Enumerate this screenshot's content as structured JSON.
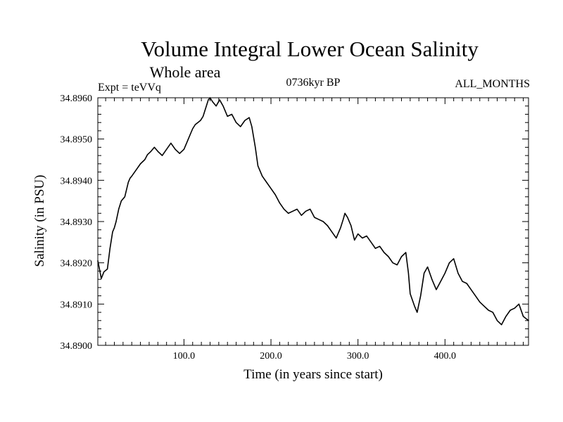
{
  "chart_data": {
    "type": "line",
    "title": "Volume Integral Lower Ocean Salinity",
    "subtitle": "Whole area",
    "header_left": "Expt = teVVq",
    "header_center": "0736kyr BP",
    "header_right": "ALL_MONTHS",
    "xlabel": "Time (in years since start)",
    "ylabel": "Salinity (in PSU)",
    "xlim": [
      1,
      496
    ],
    "ylim": [
      34.89,
      34.896
    ],
    "x_ticks": [
      100,
      200,
      300,
      400
    ],
    "x_tick_labels": [
      "100.0",
      "200.0",
      "300.0",
      "400.0"
    ],
    "y_ticks": [
      34.89,
      34.891,
      34.892,
      34.893,
      34.894,
      34.895,
      34.896
    ],
    "y_tick_labels": [
      "34.8900",
      "34.8910",
      "34.8920",
      "34.8930",
      "34.8940",
      "34.8950",
      "34.8960"
    ],
    "line_color": "#000000",
    "series": [
      {
        "name": "Salinity",
        "x": [
          1,
          5,
          8,
          12,
          15,
          18,
          20,
          22,
          25,
          28,
          32,
          36,
          38,
          40,
          45,
          50,
          55,
          58,
          62,
          66,
          70,
          75,
          80,
          85,
          90,
          95,
          100,
          103,
          106,
          110,
          113,
          116,
          119,
          122,
          125,
          128,
          130,
          133,
          137,
          141,
          145,
          150,
          155,
          160,
          165,
          170,
          175,
          178,
          182,
          185,
          190,
          195,
          200,
          205,
          210,
          215,
          220,
          225,
          230,
          235,
          240,
          245,
          250,
          255,
          260,
          265,
          270,
          275,
          280,
          283,
          285,
          288,
          292,
          296,
          300,
          305,
          310,
          315,
          320,
          325,
          330,
          335,
          340,
          345,
          350,
          355,
          358,
          360,
          365,
          368,
          372,
          376,
          380,
          385,
          390,
          395,
          400,
          405,
          410,
          415,
          420,
          425,
          430,
          435,
          440,
          445,
          450,
          455,
          460,
          465,
          470,
          475,
          480,
          485,
          490,
          493,
          496
        ],
        "values": [
          34.89205,
          34.89162,
          34.89178,
          34.89185,
          34.89235,
          34.89275,
          34.89285,
          34.893,
          34.8933,
          34.8935,
          34.8936,
          34.89395,
          34.89405,
          34.8941,
          34.89425,
          34.8944,
          34.8945,
          34.89462,
          34.8947,
          34.8948,
          34.8947,
          34.8946,
          34.89475,
          34.8949,
          34.89475,
          34.89465,
          34.89475,
          34.8949,
          34.89505,
          34.89525,
          34.89535,
          34.8954,
          34.89545,
          34.89555,
          34.89575,
          34.89595,
          34.896,
          34.8959,
          34.8958,
          34.89595,
          34.8958,
          34.89555,
          34.8956,
          34.8954,
          34.8953,
          34.89545,
          34.89552,
          34.8953,
          34.8948,
          34.89435,
          34.8941,
          34.89395,
          34.8938,
          34.89365,
          34.89345,
          34.8933,
          34.8932,
          34.89325,
          34.8933,
          34.89315,
          34.89325,
          34.8933,
          34.8931,
          34.89305,
          34.893,
          34.8929,
          34.89275,
          34.8926,
          34.89285,
          34.89305,
          34.8932,
          34.8931,
          34.8929,
          34.89255,
          34.8927,
          34.8926,
          34.89265,
          34.8925,
          34.89235,
          34.8924,
          34.89225,
          34.89215,
          34.892,
          34.89195,
          34.89215,
          34.89225,
          34.89175,
          34.89125,
          34.89095,
          34.8908,
          34.8912,
          34.89175,
          34.8919,
          34.8916,
          34.89135,
          34.89155,
          34.89175,
          34.892,
          34.8921,
          34.89175,
          34.89155,
          34.8915,
          34.89135,
          34.8912,
          34.89105,
          34.89095,
          34.89085,
          34.8908,
          34.8906,
          34.8905,
          34.8907,
          34.89085,
          34.8909,
          34.891,
          34.8907,
          34.89065,
          34.8906
        ]
      }
    ]
  }
}
